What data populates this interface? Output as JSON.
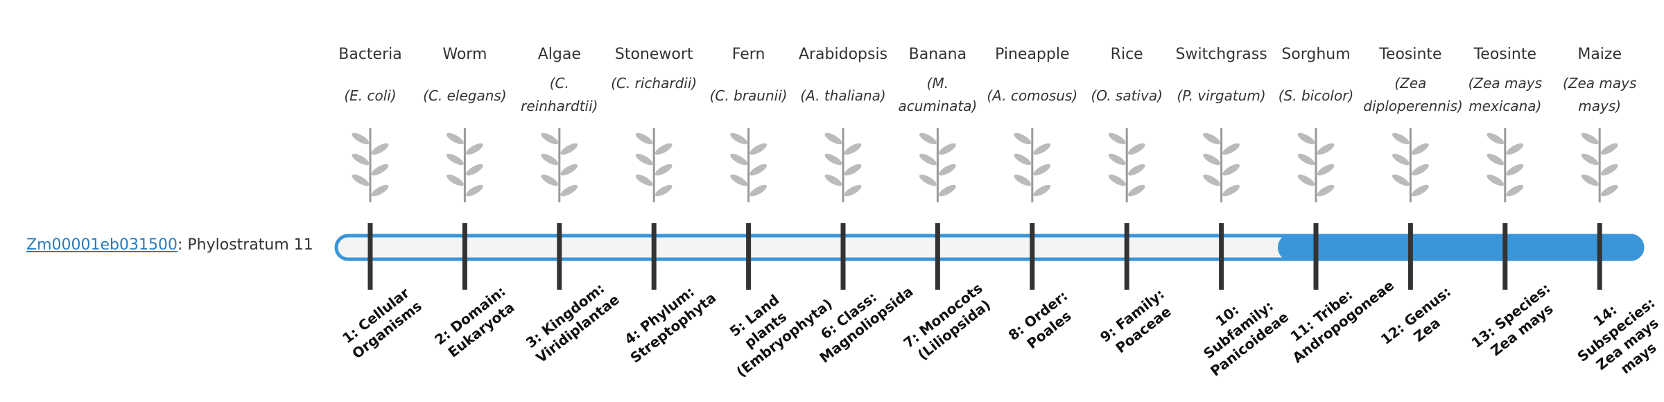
{
  "gene": {
    "id": "Zm00001eb031500",
    "label": ": Phylostratum 11"
  },
  "organisms": [
    {
      "name": "Bacteria",
      "species": "(E. coli)",
      "stratum": "1: Cellular Organisms"
    },
    {
      "name": "Worm",
      "species": "(C. elegans)",
      "stratum": "2: Domain: Eukaryota"
    },
    {
      "name": "Algae",
      "species": "(C. reinhardtii)",
      "stratum": "3: Kingdom: Viridiplantae"
    },
    {
      "name": "Stonewort",
      "species": "(C. richardii)",
      "stratum": "4: Phylum: Streptophyta"
    },
    {
      "name": "Fern",
      "species": "(C. braunii)",
      "stratum": "5: Land plants (Embryophyta)"
    },
    {
      "name": "Arabidopsis",
      "species": "(A. thaliana)",
      "stratum": "6: Class: Magnoliopsida"
    },
    {
      "name": "Banana",
      "species": "(M. acuminata)",
      "stratum": "7: Monocots (Liliopsida)"
    },
    {
      "name": "Pineapple",
      "species": "(A. comosus)",
      "stratum": "8: Order: Poales"
    },
    {
      "name": "Rice",
      "species": "(O. sativa)",
      "stratum": "9: Family: Poaceae"
    },
    {
      "name": "Switchgrass",
      "species": "(P. virgatum)",
      "stratum": "10: Subfamily: Panicoideae"
    },
    {
      "name": "Sorghum",
      "species": "(S. bicolor)",
      "stratum": "11: Tribe: Andropogoneae"
    },
    {
      "name": "Teosinte",
      "species": "(Zea diploperennis)",
      "stratum": "12: Genus: Zea"
    },
    {
      "name": "Teosinte",
      "species": "(Zea mays mexicana)",
      "stratum": "13: Species: Zea mays"
    },
    {
      "name": "Maize",
      "species": "(Zea mays mays)",
      "stratum": "14: Subspecies: Zea mays mays"
    }
  ]
}
